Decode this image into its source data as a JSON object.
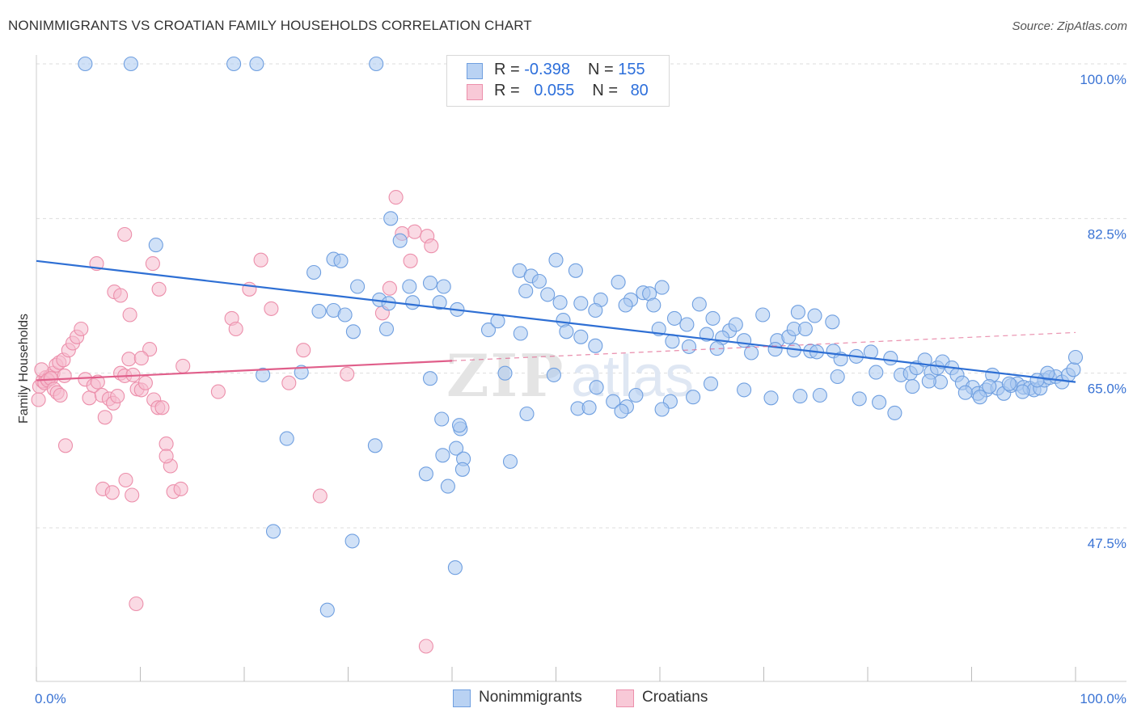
{
  "title": "NONIMMIGRANTS VS CROATIAN FAMILY HOUSEHOLDS CORRELATION CHART",
  "source": "Source: ZipAtlas.com",
  "watermark": "ZIPatlas",
  "legend": {
    "rows": [
      {
        "r_label": "R = ",
        "r_value": "-0.398",
        "n_label": "N = ",
        "n_value": "155"
      },
      {
        "r_label": "R = ",
        "r_value": "0.055",
        "n_label": "N = ",
        "n_value": "80"
      }
    ]
  },
  "colors": {
    "blue_fill": "#aac8f0",
    "blue_stroke": "#6f9fe0",
    "blue_line": "#2e6fd4",
    "pink_fill": "#f6bccd",
    "pink_stroke": "#ec8fab",
    "pink_line": "#e05e8a",
    "grid": "#dddddd",
    "axis_text": "#3a73d4"
  },
  "chart_data": {
    "type": "scatter",
    "title": "NONIMMIGRANTS VS CROATIAN FAMILY HOUSEHOLDS CORRELATION CHART",
    "xlabel": "",
    "ylabel": "Family Households",
    "xlim": [
      0,
      100
    ],
    "ylim": [
      32.5,
      102
    ],
    "x_tick_labels": [
      "0.0%",
      "100.0%"
    ],
    "y_tick_labels": [
      "100.0%",
      "82.5%",
      "65.0%",
      "47.5%"
    ],
    "y_ticks": [
      100.0,
      82.5,
      65.0,
      47.5
    ],
    "grid": true,
    "legend_position": "top-center",
    "series": [
      {
        "name": "Nonimmigrants",
        "r": -0.398,
        "n": 155,
        "trend": {
          "x": [
            0,
            100
          ],
          "y": [
            77.7,
            64.0
          ]
        },
        "points": [
          [
            4.7,
            100.0
          ],
          [
            9.1,
            100.0
          ],
          [
            19.0,
            100.0
          ],
          [
            21.2,
            100.0
          ],
          [
            32.7,
            100.0
          ],
          [
            11.5,
            79.5
          ],
          [
            35.0,
            80.0
          ],
          [
            34.1,
            82.5
          ],
          [
            28.6,
            77.9
          ],
          [
            29.3,
            77.7
          ],
          [
            26.7,
            76.4
          ],
          [
            37.9,
            75.2
          ],
          [
            39.2,
            74.8
          ],
          [
            35.9,
            74.8
          ],
          [
            46.5,
            76.6
          ],
          [
            47.6,
            76.0
          ],
          [
            48.4,
            75.4
          ],
          [
            50.0,
            77.8
          ],
          [
            51.9,
            76.6
          ],
          [
            47.1,
            74.3
          ],
          [
            49.2,
            73.9
          ],
          [
            50.4,
            73.0
          ],
          [
            52.4,
            72.9
          ],
          [
            56.0,
            75.3
          ],
          [
            57.2,
            73.3
          ],
          [
            58.4,
            74.1
          ],
          [
            59.0,
            74.0
          ],
          [
            54.3,
            73.3
          ],
          [
            53.8,
            72.1
          ],
          [
            56.7,
            72.7
          ],
          [
            59.4,
            72.7
          ],
          [
            60.2,
            74.7
          ],
          [
            61.4,
            71.2
          ],
          [
            62.6,
            70.5
          ],
          [
            65.1,
            71.2
          ],
          [
            63.8,
            72.8
          ],
          [
            66.7,
            69.8
          ],
          [
            67.3,
            70.5
          ],
          [
            69.9,
            71.6
          ],
          [
            66.0,
            69.0
          ],
          [
            68.1,
            68.7
          ],
          [
            71.3,
            68.7
          ],
          [
            72.4,
            69.1
          ],
          [
            72.9,
            70.0
          ],
          [
            74.0,
            70.0
          ],
          [
            74.9,
            71.5
          ],
          [
            73.3,
            71.9
          ],
          [
            76.6,
            70.8
          ],
          [
            27.2,
            72.0
          ],
          [
            28.6,
            72.1
          ],
          [
            29.7,
            71.6
          ],
          [
            30.5,
            69.7
          ],
          [
            33.7,
            70.0
          ],
          [
            30.9,
            74.8
          ],
          [
            33.0,
            73.3
          ],
          [
            33.9,
            72.9
          ],
          [
            36.2,
            73.0
          ],
          [
            38.8,
            73.0
          ],
          [
            40.5,
            72.2
          ],
          [
            43.5,
            69.9
          ],
          [
            44.4,
            70.9
          ],
          [
            46.6,
            69.5
          ],
          [
            50.7,
            71.0
          ],
          [
            51.0,
            69.7
          ],
          [
            52.4,
            69.1
          ],
          [
            53.8,
            68.1
          ],
          [
            59.9,
            70.0
          ],
          [
            61.2,
            68.6
          ],
          [
            62.8,
            68.0
          ],
          [
            64.5,
            69.4
          ],
          [
            65.5,
            67.8
          ],
          [
            68.8,
            67.3
          ],
          [
            71.1,
            67.7
          ],
          [
            72.9,
            67.6
          ],
          [
            74.5,
            67.5
          ],
          [
            75.1,
            67.4
          ],
          [
            76.7,
            67.5
          ],
          [
            77.4,
            66.6
          ],
          [
            78.9,
            66.9
          ],
          [
            80.3,
            67.4
          ],
          [
            80.8,
            65.1
          ],
          [
            82.2,
            66.7
          ],
          [
            83.2,
            64.8
          ],
          [
            84.1,
            65.0
          ],
          [
            84.7,
            65.6
          ],
          [
            85.5,
            66.5
          ],
          [
            86.1,
            65.1
          ],
          [
            86.7,
            65.6
          ],
          [
            87.2,
            66.3
          ],
          [
            88.1,
            65.6
          ],
          [
            88.6,
            64.8
          ],
          [
            89.1,
            63.9
          ],
          [
            90.1,
            63.4
          ],
          [
            90.6,
            62.7
          ],
          [
            91.4,
            63.1
          ],
          [
            92.0,
            64.8
          ],
          [
            92.5,
            63.3
          ],
          [
            93.1,
            62.7
          ],
          [
            93.8,
            63.6
          ],
          [
            94.4,
            63.8
          ],
          [
            95.0,
            63.4
          ],
          [
            95.6,
            63.3
          ],
          [
            96.0,
            63.1
          ],
          [
            96.6,
            63.3
          ],
          [
            97.0,
            64.2
          ],
          [
            97.5,
            64.5
          ],
          [
            98.1,
            64.6
          ],
          [
            98.7,
            64.0
          ],
          [
            99.3,
            64.8
          ],
          [
            99.8,
            65.4
          ],
          [
            100.0,
            66.8
          ],
          [
            97.3,
            65.0
          ],
          [
            96.3,
            64.2
          ],
          [
            94.9,
            62.9
          ],
          [
            93.6,
            63.8
          ],
          [
            91.7,
            63.5
          ],
          [
            90.8,
            62.3
          ],
          [
            89.4,
            62.8
          ],
          [
            87.0,
            64.0
          ],
          [
            85.9,
            64.1
          ],
          [
            84.3,
            63.5
          ],
          [
            82.6,
            60.5
          ],
          [
            81.1,
            61.7
          ],
          [
            79.2,
            62.1
          ],
          [
            77.1,
            64.6
          ],
          [
            75.4,
            62.5
          ],
          [
            73.5,
            62.4
          ],
          [
            70.7,
            62.2
          ],
          [
            68.1,
            63.1
          ],
          [
            64.9,
            63.8
          ],
          [
            63.2,
            62.3
          ],
          [
            61.0,
            61.8
          ],
          [
            57.7,
            62.5
          ],
          [
            56.8,
            61.2
          ],
          [
            55.5,
            61.8
          ],
          [
            52.1,
            61.0
          ],
          [
            53.9,
            63.4
          ],
          [
            45.1,
            65.0
          ],
          [
            49.8,
            64.8
          ],
          [
            53.2,
            61.1
          ],
          [
            56.3,
            60.7
          ],
          [
            60.2,
            60.9
          ],
          [
            21.8,
            64.8
          ],
          [
            25.5,
            65.1
          ],
          [
            37.9,
            64.4
          ],
          [
            39.0,
            59.8
          ],
          [
            32.6,
            56.8
          ],
          [
            37.5,
            53.6
          ],
          [
            39.1,
            55.7
          ],
          [
            40.4,
            56.5
          ],
          [
            40.8,
            58.7
          ],
          [
            41.1,
            55.3
          ],
          [
            40.7,
            59.1
          ],
          [
            41.0,
            54.1
          ],
          [
            39.6,
            52.2
          ],
          [
            24.1,
            57.6
          ],
          [
            22.8,
            47.1
          ],
          [
            30.4,
            46.0
          ],
          [
            40.3,
            43.0
          ],
          [
            28.0,
            38.2
          ],
          [
            45.6,
            55.0
          ],
          [
            47.2,
            60.4
          ]
        ]
      },
      {
        "name": "Croatians",
        "r": 0.055,
        "n": 80,
        "trend": {
          "x": [
            0,
            40
          ],
          "y": [
            64.2,
            66.4
          ]
        },
        "trend_extension": {
          "x": [
            40,
            100
          ],
          "y": [
            66.4,
            69.6
          ]
        },
        "points": [
          [
            0.3,
            63.5
          ],
          [
            0.6,
            64.1
          ],
          [
            0.9,
            64.5
          ],
          [
            1.3,
            64.6
          ],
          [
            1.6,
            65.0
          ],
          [
            1.9,
            65.9
          ],
          [
            2.2,
            66.2
          ],
          [
            2.6,
            66.5
          ],
          [
            0.2,
            62.0
          ],
          [
            0.5,
            65.4
          ],
          [
            0.8,
            63.9
          ],
          [
            1.1,
            64.2
          ],
          [
            1.4,
            64.4
          ],
          [
            1.7,
            63.2
          ],
          [
            2.0,
            62.8
          ],
          [
            2.3,
            62.5
          ],
          [
            2.7,
            64.7
          ],
          [
            3.1,
            67.6
          ],
          [
            3.5,
            68.4
          ],
          [
            3.9,
            69.1
          ],
          [
            4.3,
            70.0
          ],
          [
            4.7,
            64.3
          ],
          [
            5.1,
            62.2
          ],
          [
            5.5,
            63.6
          ],
          [
            5.9,
            64.0
          ],
          [
            6.3,
            62.5
          ],
          [
            6.6,
            60.0
          ],
          [
            7.0,
            62.1
          ],
          [
            7.4,
            61.6
          ],
          [
            7.8,
            62.4
          ],
          [
            8.1,
            65.0
          ],
          [
            8.5,
            64.7
          ],
          [
            8.9,
            66.6
          ],
          [
            9.3,
            64.8
          ],
          [
            9.7,
            63.2
          ],
          [
            10.1,
            63.1
          ],
          [
            10.5,
            63.9
          ],
          [
            10.9,
            67.7
          ],
          [
            11.3,
            62.0
          ],
          [
            11.7,
            61.1
          ],
          [
            12.1,
            61.1
          ],
          [
            12.5,
            57.0
          ],
          [
            12.9,
            54.5
          ],
          [
            5.8,
            77.4
          ],
          [
            7.5,
            74.2
          ],
          [
            8.1,
            73.8
          ],
          [
            9.0,
            71.6
          ],
          [
            8.5,
            80.7
          ],
          [
            11.2,
            77.4
          ],
          [
            11.8,
            74.5
          ],
          [
            10.1,
            66.7
          ],
          [
            12.5,
            55.6
          ],
          [
            13.2,
            51.6
          ],
          [
            14.1,
            65.8
          ],
          [
            17.5,
            62.9
          ],
          [
            18.8,
            71.2
          ],
          [
            19.2,
            70.0
          ],
          [
            20.5,
            74.5
          ],
          [
            21.6,
            77.8
          ],
          [
            22.6,
            72.3
          ],
          [
            24.3,
            63.9
          ],
          [
            25.7,
            67.6
          ],
          [
            27.3,
            51.1
          ],
          [
            29.9,
            64.9
          ],
          [
            34.0,
            74.6
          ],
          [
            34.6,
            84.9
          ],
          [
            36.0,
            77.7
          ],
          [
            36.4,
            81.0
          ],
          [
            37.6,
            80.5
          ],
          [
            38.0,
            79.4
          ],
          [
            35.2,
            80.8
          ],
          [
            33.3,
            71.8
          ],
          [
            8.6,
            52.9
          ],
          [
            9.2,
            51.2
          ],
          [
            6.4,
            51.9
          ],
          [
            7.3,
            51.5
          ],
          [
            2.8,
            56.8
          ],
          [
            9.6,
            38.9
          ],
          [
            37.5,
            34.1
          ],
          [
            13.9,
            51.9
          ]
        ]
      }
    ]
  }
}
